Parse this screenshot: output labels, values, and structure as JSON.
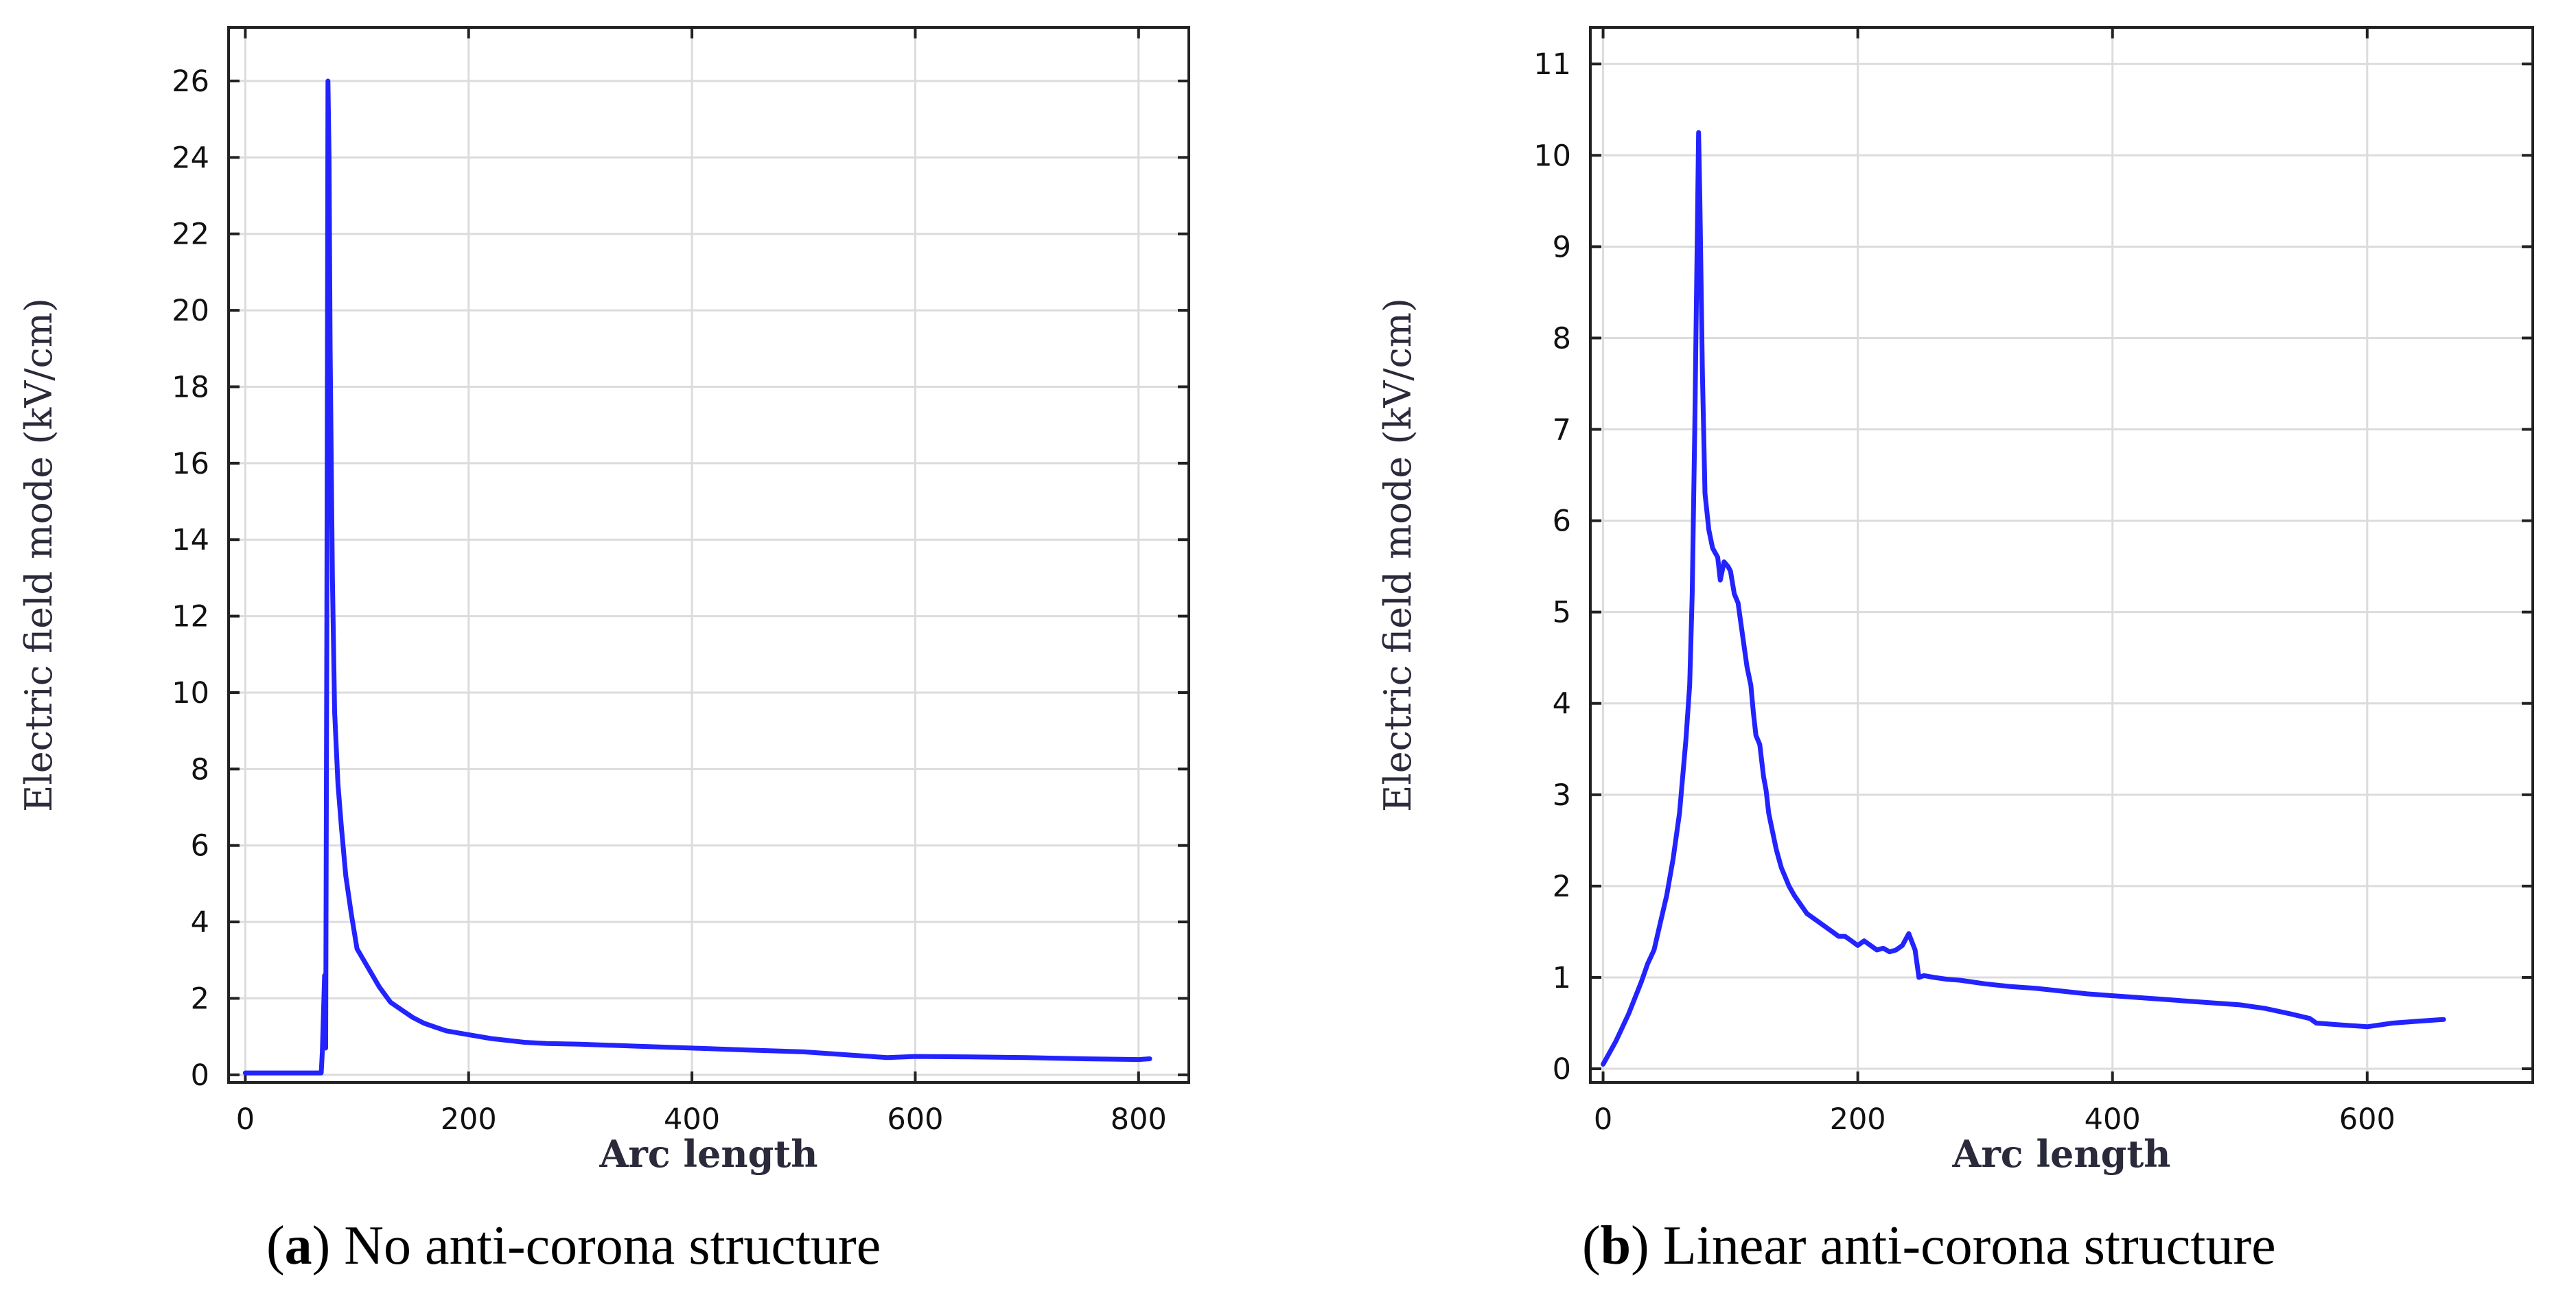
{
  "chart_data": [
    {
      "type": "line",
      "panel": "a",
      "caption_letter": "a",
      "caption": "No anti-corona structure",
      "xlabel": "Arc length",
      "ylabel": "Electric field mode (kV/cm)",
      "xlim": [
        -15,
        845
      ],
      "ylim": [
        -0.2,
        27.4
      ],
      "xticks": [
        0,
        200,
        400,
        600,
        800
      ],
      "yticks": [
        0,
        2,
        4,
        6,
        8,
        10,
        12,
        14,
        16,
        18,
        20,
        22,
        24,
        26
      ],
      "grid": true,
      "series": [
        {
          "name": "Electric field mode",
          "color": "#2323ff",
          "x": [
            0,
            40,
            68,
            69,
            71,
            72,
            73,
            74,
            75,
            76,
            78,
            80,
            83,
            86,
            90,
            95,
            100,
            110,
            120,
            130,
            140,
            150,
            160,
            170,
            180,
            200,
            220,
            250,
            270,
            300,
            350,
            400,
            450,
            500,
            550,
            575,
            600,
            650,
            700,
            750,
            800,
            810
          ],
          "y": [
            0.05,
            0.05,
            0.05,
            0.6,
            2.6,
            0.7,
            12,
            26,
            24,
            19,
            13,
            9.5,
            7.6,
            6.5,
            5.2,
            4.2,
            3.3,
            2.8,
            2.3,
            1.9,
            1.7,
            1.5,
            1.35,
            1.25,
            1.15,
            1.05,
            0.95,
            0.85,
            0.82,
            0.8,
            0.75,
            0.7,
            0.65,
            0.6,
            0.5,
            0.45,
            0.48,
            0.47,
            0.45,
            0.42,
            0.4,
            0.42
          ]
        }
      ]
    },
    {
      "type": "line",
      "panel": "b",
      "caption_letter": "b",
      "caption": "Linear anti-corona structure",
      "xlabel": "Arc length",
      "ylabel": "Electric field mode (kV/cm)",
      "xlim": [
        -10,
        730
      ],
      "ylim": [
        -0.15,
        11.4
      ],
      "xticks": [
        0,
        200,
        400,
        600
      ],
      "yticks": [
        0,
        1,
        2,
        3,
        4,
        5,
        6,
        7,
        8,
        9,
        10,
        11
      ],
      "grid": true,
      "series": [
        {
          "name": "Electric field mode",
          "color": "#2323ff",
          "x": [
            0,
            10,
            20,
            30,
            35,
            40,
            45,
            50,
            55,
            60,
            65,
            68,
            70,
            72,
            74,
            75,
            76,
            78,
            80,
            83,
            86,
            90,
            92,
            95,
            98,
            100,
            103,
            106,
            108,
            110,
            113,
            116,
            118,
            120,
            123,
            126,
            128,
            130,
            133,
            136,
            138,
            140,
            143,
            146,
            150,
            155,
            160,
            165,
            170,
            175,
            180,
            185,
            190,
            195,
            200,
            205,
            210,
            215,
            220,
            225,
            230,
            235,
            240,
            245,
            248,
            252,
            260,
            270,
            280,
            290,
            300,
            320,
            340,
            360,
            380,
            400,
            420,
            440,
            460,
            480,
            500,
            520,
            540,
            555,
            560,
            580,
            600,
            620,
            640,
            660
          ],
          "y": [
            0.05,
            0.3,
            0.6,
            0.95,
            1.15,
            1.3,
            1.6,
            1.9,
            2.3,
            2.8,
            3.6,
            4.2,
            5.2,
            7.0,
            9.2,
            10.25,
            9.5,
            7.6,
            6.3,
            5.9,
            5.7,
            5.6,
            5.35,
            5.55,
            5.5,
            5.45,
            5.2,
            5.1,
            4.9,
            4.7,
            4.4,
            4.2,
            3.9,
            3.65,
            3.55,
            3.2,
            3.05,
            2.8,
            2.6,
            2.4,
            2.3,
            2.2,
            2.1,
            2.0,
            1.9,
            1.8,
            1.7,
            1.65,
            1.6,
            1.55,
            1.5,
            1.45,
            1.45,
            1.4,
            1.35,
            1.4,
            1.35,
            1.3,
            1.32,
            1.28,
            1.3,
            1.35,
            1.48,
            1.3,
            1.0,
            1.02,
            1.0,
            0.98,
            0.97,
            0.95,
            0.93,
            0.9,
            0.88,
            0.85,
            0.82,
            0.8,
            0.78,
            0.76,
            0.74,
            0.72,
            0.7,
            0.66,
            0.6,
            0.55,
            0.5,
            0.48,
            0.46,
            0.5,
            0.52,
            0.54
          ]
        }
      ]
    }
  ]
}
